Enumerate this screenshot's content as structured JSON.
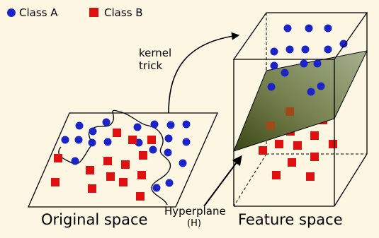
{
  "legend": {
    "class_a": "Class A",
    "class_b": "Class B"
  },
  "labels": {
    "kernel_line1": "kernel",
    "kernel_line2": "trick",
    "original_space": "Original space",
    "feature_space": "Feature space",
    "hyperplane_line1": "Hyperplane",
    "hyperplane_line2": "(H)"
  },
  "colors": {
    "background": "#fdf6e3",
    "class_a": "#1a24c8",
    "class_b": "#e01010",
    "plane_top": "#9aa583",
    "plane_bottom": "#3f4a17",
    "box_edge": "#000000"
  }
}
